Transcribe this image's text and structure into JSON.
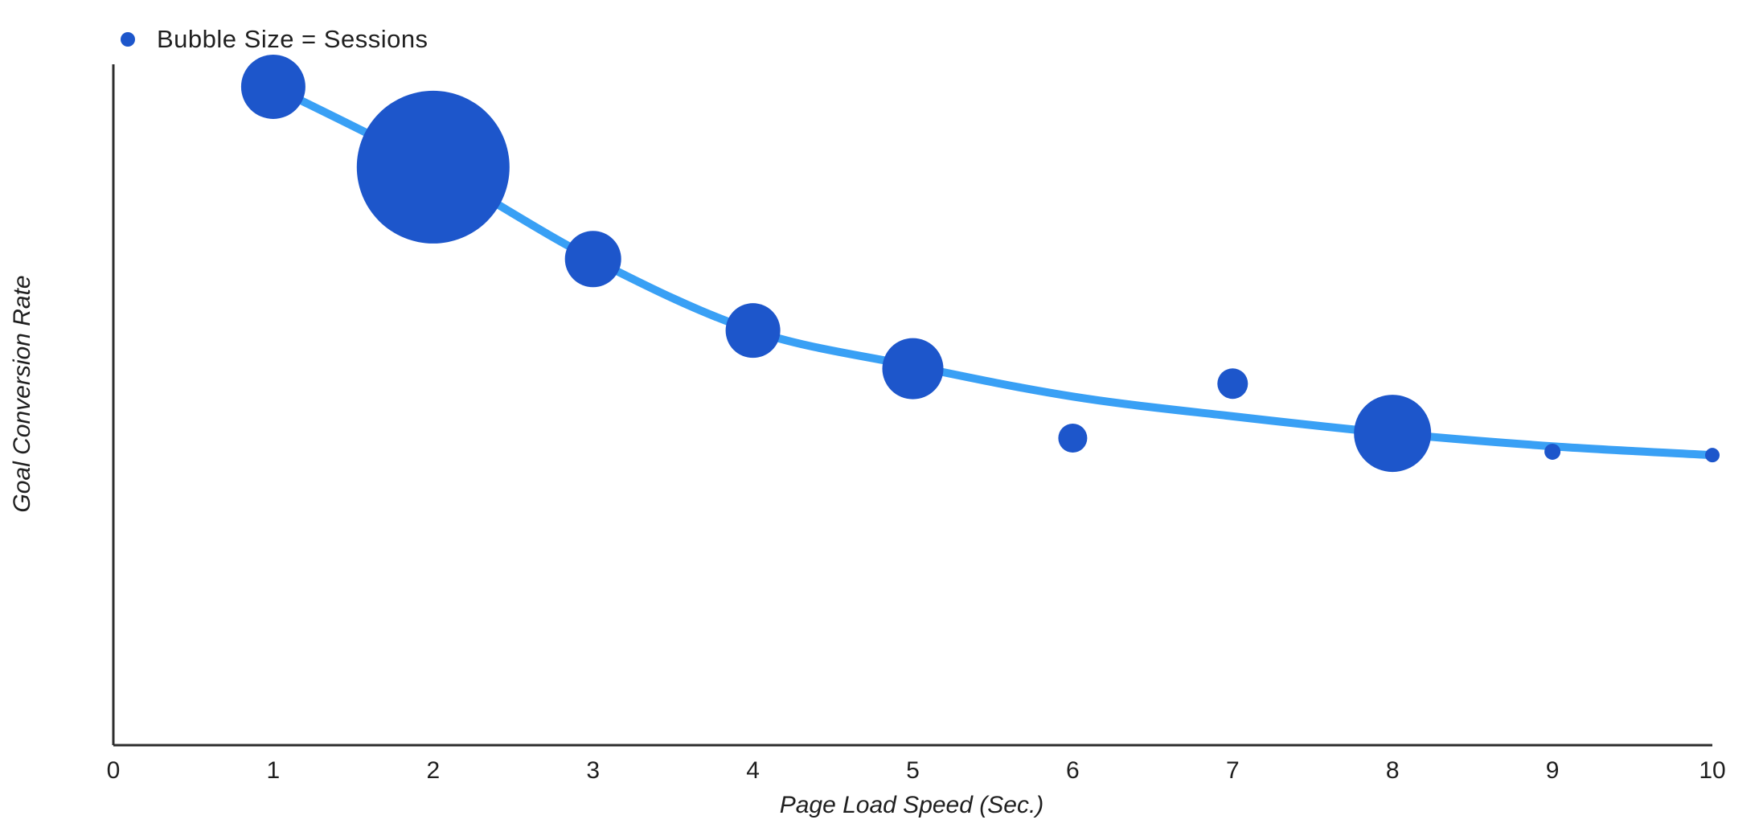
{
  "page": {
    "background": "#ffffff"
  },
  "legend": {
    "label": "Bubble Size = Sessions",
    "marker_color": "#1d56cb"
  },
  "chart_data": {
    "type": "bubble",
    "title": "",
    "xlabel": "Page Load Speed (Sec.)",
    "ylabel": "Goal Conversion Rate",
    "legend_label": "Bubble Size = Sessions",
    "grid": false,
    "x_ticks": [
      0,
      1,
      2,
      3,
      4,
      5,
      6,
      7,
      8,
      9,
      10
    ],
    "xlim": [
      0,
      10
    ],
    "y_axis_note": "y axis has no tick labels; y values below are fractions of the plot height (0 = axis bottom, 1 = axis top)",
    "bubbles": [
      {
        "x": 1,
        "y": 0.967,
        "r": 40
      },
      {
        "x": 2,
        "y": 0.849,
        "r": 95
      },
      {
        "x": 3,
        "y": 0.714,
        "r": 35
      },
      {
        "x": 4,
        "y": 0.609,
        "r": 34
      },
      {
        "x": 5,
        "y": 0.553,
        "r": 38
      },
      {
        "x": 6,
        "y": 0.451,
        "r": 18
      },
      {
        "x": 7,
        "y": 0.531,
        "r": 19
      },
      {
        "x": 8,
        "y": 0.458,
        "r": 48
      },
      {
        "x": 9,
        "y": 0.431,
        "r": 10
      },
      {
        "x": 10,
        "y": 0.426,
        "r": 9
      }
    ],
    "trend_line": [
      {
        "x": 1,
        "y": 0.967
      },
      {
        "x": 2,
        "y": 0.849
      },
      {
        "x": 3,
        "y": 0.714
      },
      {
        "x": 4,
        "y": 0.609
      },
      {
        "x": 5,
        "y": 0.557
      },
      {
        "x": 6,
        "y": 0.512
      },
      {
        "x": 7,
        "y": 0.483
      },
      {
        "x": 8,
        "y": 0.458
      },
      {
        "x": 9,
        "y": 0.439
      },
      {
        "x": 10,
        "y": 0.426
      }
    ],
    "colors": {
      "bubble": "#1d56cb",
      "trend_line": "#39a0f5",
      "axis": "#2d2d2d",
      "text": "#1f1f1f"
    }
  }
}
